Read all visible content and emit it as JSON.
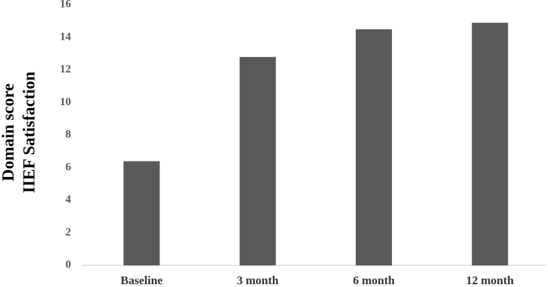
{
  "chart_data": {
    "type": "bar",
    "y_label": [
      "IIEF Satisfaction",
      "Domain score"
    ],
    "categories": [
      "Baseline",
      "3 month",
      "6 month",
      "12 month"
    ],
    "values": [
      6.4,
      12.8,
      14.5,
      14.9
    ],
    "color": "#595959",
    "ylim": [
      0,
      16
    ],
    "yticks": [
      0,
      2,
      4,
      6,
      8,
      10,
      12,
      14,
      16
    ],
    "grid": false
  }
}
